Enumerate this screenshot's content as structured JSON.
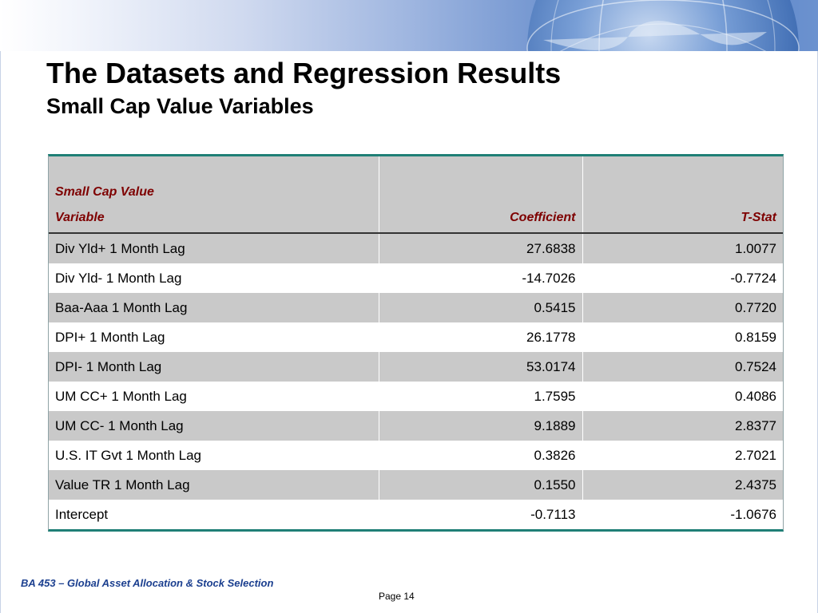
{
  "slide": {
    "title": "The Datasets and Regression Results",
    "subtitle": "Small Cap Value Variables",
    "footer_course": "BA 453 – Global Asset Allocation & Stock Selection",
    "footer_page": "Page 14"
  },
  "table": {
    "header_top": "Small Cap Value",
    "headers": [
      "Variable",
      "Coefficient",
      "T-Stat"
    ],
    "rows": [
      [
        "Div Yld+  1 Month Lag",
        "27.6838",
        "1.0077"
      ],
      [
        "Div Yld-  1 Month Lag",
        "-14.7026",
        "-0.7724"
      ],
      [
        "Baa-Aaa  1 Month Lag",
        "0.5415",
        "0.7720"
      ],
      [
        "DPI+  1 Month Lag",
        "26.1778",
        "0.8159"
      ],
      [
        "DPI-  1 Month Lag",
        "53.0174",
        "0.7524"
      ],
      [
        "UM CC+  1 Month Lag",
        "1.7595",
        "0.4086"
      ],
      [
        "UM CC-  1 Month Lag",
        "9.1889",
        "2.8377"
      ],
      [
        "U.S. IT Gvt  1 Month Lag",
        "0.3826",
        "2.7021"
      ],
      [
        "Value TR 1 Month Lag",
        "0.1550",
        "2.4375"
      ],
      [
        "Intercept",
        "-0.7113",
        "-1.0676"
      ]
    ]
  },
  "colors": {
    "header_text": "#7e0000",
    "table_rule": "#1f7f76",
    "row_shade": "#c9c9c9",
    "footer_text": "#1b3f8f"
  },
  "icons": {
    "banner_graphic": "globe-icon"
  }
}
